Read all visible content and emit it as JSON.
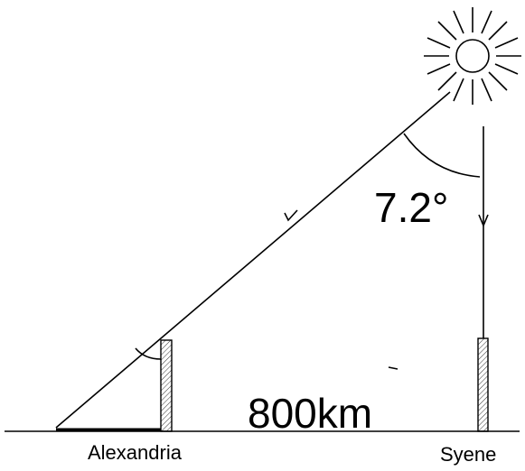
{
  "angle_label": "7.2°",
  "distance_label": "800km",
  "locations": [
    "Alexandria",
    "Syene"
  ]
}
